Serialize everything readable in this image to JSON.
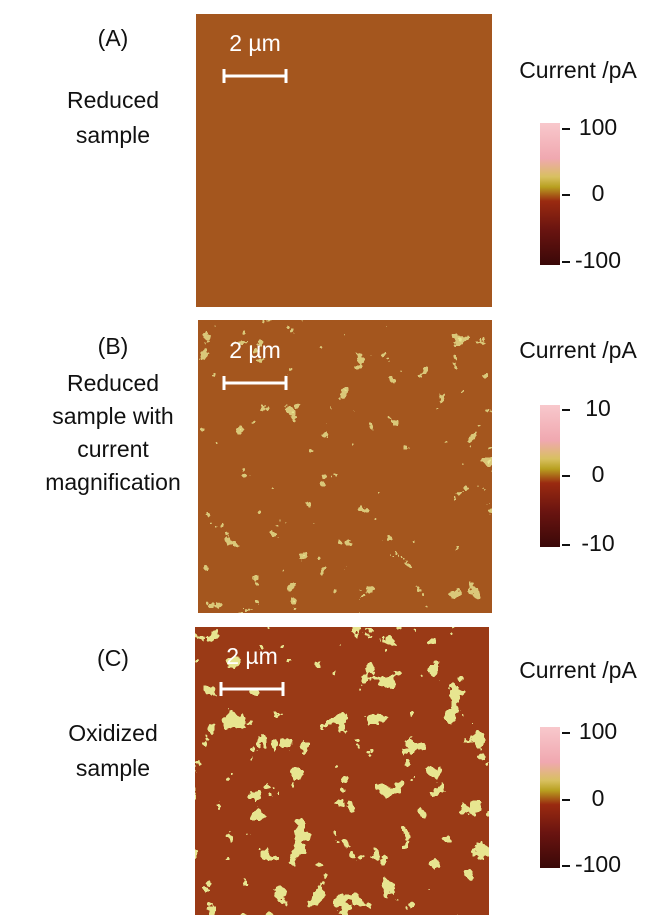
{
  "panels": [
    {
      "label": "(A)",
      "description": [
        "Reduced",
        "sample"
      ],
      "scale_bar": "2 µm",
      "colorbar": {
        "title": "Current /pA",
        "ticks": [
          "100",
          "0",
          "-100"
        ]
      }
    },
    {
      "label": "(B)",
      "description": [
        "Reduced",
        "sample with",
        "current",
        "magnification"
      ],
      "scale_bar": "2 µm",
      "colorbar": {
        "title": "Current /pA",
        "ticks": [
          "10",
          "0",
          "-10"
        ]
      }
    },
    {
      "label": "(C)",
      "description": [
        "Oxidized",
        "sample"
      ],
      "scale_bar": "2 µm",
      "colorbar": {
        "title": "Current /pA",
        "ticks": [
          "100",
          "0",
          "-100"
        ]
      }
    }
  ]
}
